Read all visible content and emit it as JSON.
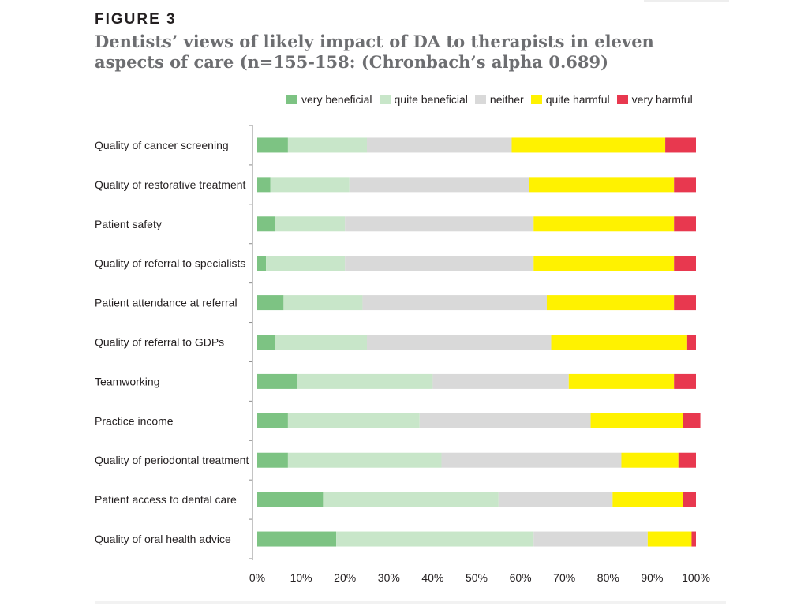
{
  "figure": {
    "label": "FIGURE 3",
    "title": "Dentists’ views of likely impact of DA to therapists in eleven aspects of care (n=155-158: (Chronbach’s alpha 0.689)"
  },
  "chart_data": {
    "type": "bar",
    "orientation": "horizontal",
    "stacked": "100%",
    "title": "Dentists’ views of likely impact of DA to therapists in eleven aspects of care (n=155-158: (Chronbach’s alpha 0.689)",
    "categories": [
      "Quality of cancer screening",
      "Quality of restorative treatment",
      "Patient safety",
      "Quality of referral to specialists",
      "Patient attendance at referral",
      "Quality of referral to GDPs",
      "Teamworking",
      "Practice income",
      "Quality of periodontal treatment",
      "Patient access to dental care",
      "Quality of oral health advice"
    ],
    "series": [
      {
        "name": "very beneficial",
        "color": "#7dc383",
        "values": [
          7,
          3,
          4,
          2,
          6,
          4,
          9,
          7,
          7,
          15,
          18
        ]
      },
      {
        "name": "quite beneficial",
        "color": "#c8e6c9",
        "values": [
          18,
          18,
          16,
          18,
          18,
          21,
          31,
          30,
          35,
          40,
          45
        ]
      },
      {
        "name": "neither",
        "color": "#d9d9d9",
        "values": [
          33,
          41,
          43,
          43,
          42,
          42,
          31,
          39,
          41,
          26,
          26
        ]
      },
      {
        "name": "quite harmful",
        "color": "#fff200",
        "values": [
          35,
          33,
          32,
          32,
          29,
          31,
          24,
          21,
          13,
          16,
          10
        ]
      },
      {
        "name": "very harmful",
        "color": "#e8384f",
        "values": [
          7,
          5,
          5,
          5,
          5,
          2,
          5,
          4,
          4,
          3,
          1
        ]
      }
    ],
    "x_ticks": [
      "0%",
      "10%",
      "20%",
      "30%",
      "40%",
      "50%",
      "60%",
      "70%",
      "80%",
      "90%",
      "100%"
    ],
    "xlim": [
      0,
      100
    ],
    "legend_position": "top",
    "grid": false
  }
}
